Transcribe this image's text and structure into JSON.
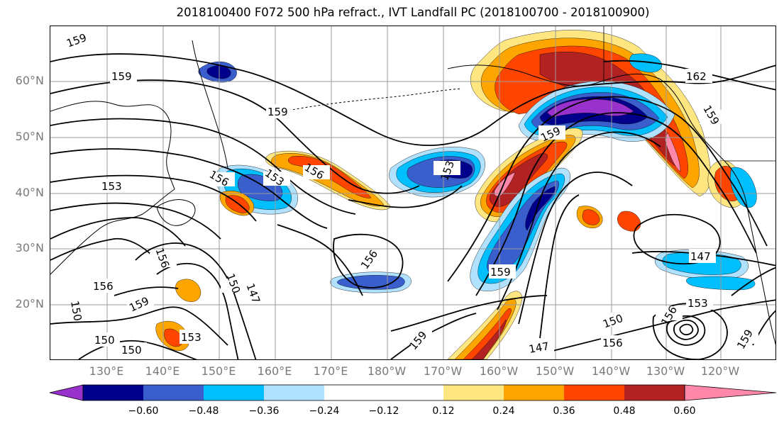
{
  "title": "2018100400 F072 500 hPa refract., IVT Landfall PC (2018100700 - 2018100900)",
  "lat_labels": [
    "60°N",
    "50°N",
    "40°N",
    "30°N",
    "20°N"
  ],
  "lon_labels": [
    "130°E",
    "140°E",
    "150°E",
    "160°E",
    "170°E",
    "180°W",
    "170°W",
    "160°W",
    "150°W",
    "140°W",
    "130°W",
    "120°W"
  ],
  "contour_labels": [
    "159",
    "159",
    "159",
    "162",
    "159",
    "153",
    "156",
    "156",
    "159",
    "153",
    "156",
    "147",
    "147",
    "159",
    "150",
    "156",
    "159",
    "150",
    "153",
    "150",
    "150",
    "153",
    "156",
    "159",
    "147",
    "156",
    "150",
    "156",
    "153",
    "159"
  ],
  "colorbar": {
    "ticks": [
      "−0.60",
      "−0.48",
      "−0.36",
      "−0.24",
      "−0.12",
      "0.12",
      "0.24",
      "0.36",
      "0.48",
      "0.60"
    ],
    "colors": [
      "#9932cc",
      "#00008b",
      "#3a5fcd",
      "#00bfff",
      "#b0e2ff",
      "#ffffff",
      "#ffe680",
      "#ffa500",
      "#ff4500",
      "#b22222",
      "#ff88aa"
    ]
  },
  "colors": {
    "c_neg4": "#9932cc",
    "c_neg3": "#00008b",
    "c_neg2": "#3a5fcd",
    "c_neg1": "#00bfff",
    "c_neg0": "#b0e2ff",
    "c_pos0": "#ffe680",
    "c_pos1": "#ffa500",
    "c_pos2": "#ff4500",
    "c_pos3": "#b22222",
    "c_pos4": "#ff88aa",
    "grid": "#9a9a9a",
    "axis_text": "#7a7a7a"
  }
}
